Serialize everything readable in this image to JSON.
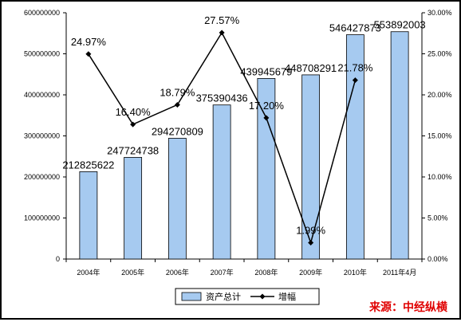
{
  "chart_data": {
    "type": "bar+line",
    "categories": [
      "2004年",
      "2005年",
      "2006年",
      "2007年",
      "2008年",
      "2009年",
      "2010年",
      "2011年4月"
    ],
    "series": [
      {
        "name": "资产总计",
        "type": "bar",
        "axis": "left",
        "values": [
          212825622,
          247724738,
          294270809,
          375390436,
          439945679,
          448708291,
          546427873,
          553892003
        ],
        "labels": [
          "212825622",
          "247724738",
          "294270809",
          "375390436",
          "439945679",
          "448708291",
          "546427873",
          "553892003"
        ]
      },
      {
        "name": "增幅",
        "type": "line",
        "axis": "right",
        "values": [
          24.97,
          16.4,
          18.79,
          27.57,
          17.2,
          1.99,
          21.78,
          null
        ],
        "labels": [
          "24.97%",
          "16.40%",
          "18.79%",
          "27.57%",
          "17.20%",
          "1.99%",
          "21.78%",
          ""
        ]
      }
    ],
    "left_axis": {
      "ylim": [
        0,
        600000000
      ],
      "ticks": [
        "0",
        "100000000",
        "200000000",
        "300000000",
        "400000000",
        "500000000",
        "600000000"
      ]
    },
    "right_axis": {
      "ylim": [
        0,
        30
      ],
      "ticks": [
        "0.00%",
        "5.00%",
        "10.00%",
        "15.00%",
        "20.00%",
        "25.00%",
        "30.00%"
      ]
    },
    "legend": {
      "position": "bottom"
    },
    "grid": false,
    "colors": {
      "bar_fill": "#a6caf0",
      "bar_stroke": "#000000",
      "line": "#000000"
    }
  },
  "source": "来源：中经纵横"
}
